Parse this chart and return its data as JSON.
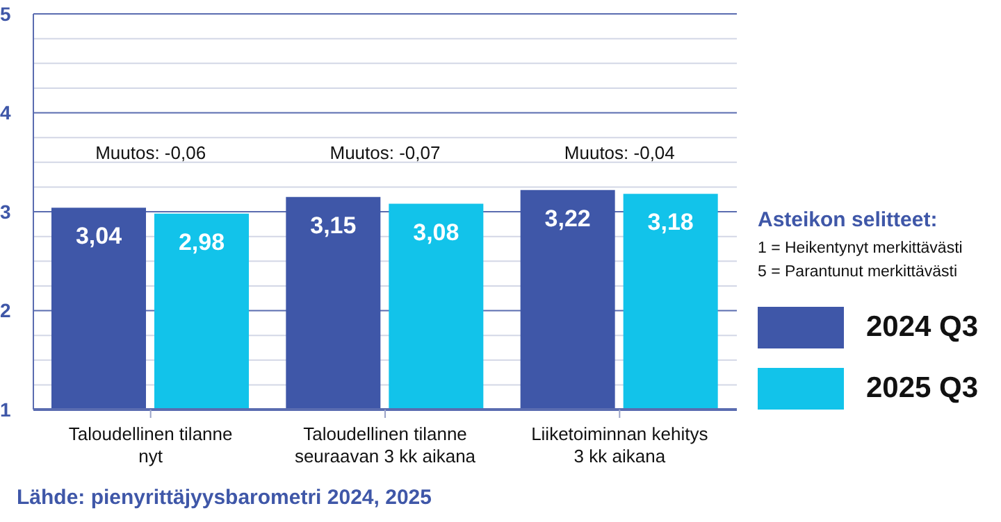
{
  "chart_data": {
    "type": "bar",
    "categories": [
      "Taloudellinen tilanne nyt",
      "Taloudellinen tilanne seuraavan 3 kk aikana",
      "Liiketoiminnan kehitys 3 kk aikana"
    ],
    "series": [
      {
        "name": "2024 Q3",
        "color": "#3f57a8",
        "values": [
          3.04,
          3.15,
          3.22
        ],
        "value_labels": [
          "3,04",
          "3,15",
          "3,22"
        ]
      },
      {
        "name": "2025 Q3",
        "color": "#12c3ea",
        "values": [
          2.98,
          3.08,
          3.18
        ],
        "value_labels": [
          "2,98",
          "3,08",
          "3,18"
        ]
      }
    ],
    "ylim": [
      1,
      5
    ],
    "yticks": [
      1,
      {
        "value": 1.25,
        "label": null
      },
      {
        "value": 1.5,
        "label": null
      },
      {
        "value": 1.75,
        "label": null
      },
      2,
      {
        "value": 2.25,
        "label": null
      },
      {
        "value": 2.5,
        "label": null
      },
      {
        "value": 2.75,
        "label": null
      },
      3,
      {
        "value": 3.25,
        "label": null
      },
      {
        "value": 3.5,
        "label": null
      },
      {
        "value": 3.75,
        "label": null
      },
      4,
      {
        "value": 4.25,
        "label": null
      },
      {
        "value": 4.5,
        "label": null
      },
      {
        "value": 4.75,
        "label": null
      },
      5
    ],
    "grid": "y",
    "legend": "right",
    "legend_title": "Asteikon selitteet:",
    "annotations": [
      "Muutos: -0,06",
      "Muutos: -0,07",
      "Muutos: -0,04",
      "1 = Heikentynyt merkittävästi",
      "5 = Parantunut merkittävästi",
      "Lähde: pienyrittäjyysbarometri 2024, 2025"
    ]
  }
}
